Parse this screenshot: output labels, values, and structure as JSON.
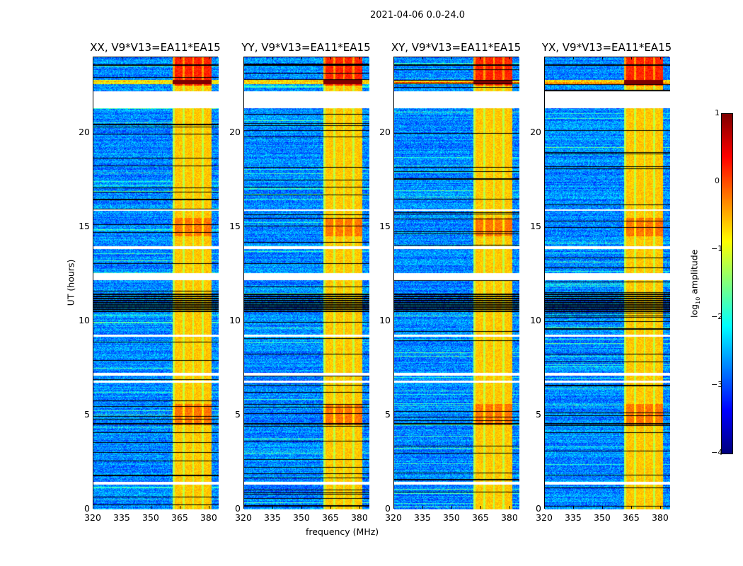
{
  "chart_data": {
    "type": "heatmap",
    "title": "2021-04-06 0.0-24.0",
    "xlabel": "frequency (MHz)",
    "ylabel": "UT (hours)",
    "xlim": [
      320,
      384.8
    ],
    "ylim": [
      0,
      24
    ],
    "xticks": [
      "320",
      "335",
      "350",
      "365",
      "380"
    ],
    "xtick_values": [
      320,
      335,
      350,
      365,
      380
    ],
    "yticks": [
      "0",
      "5",
      "10",
      "15",
      "20"
    ],
    "ytick_values": [
      0,
      5,
      10,
      15,
      20
    ],
    "panels": [
      {
        "title": "XX, V9*V13=EA11*EA15"
      },
      {
        "title": "YY, V9*V13=EA11*EA15"
      },
      {
        "title": "XY, V9*V13=EA11*EA15"
      },
      {
        "title": "YX, V9*V13=EA11*EA15"
      }
    ],
    "colorbar": {
      "label": "log10 amplitude",
      "label_main": "log",
      "label_sub": "10",
      "label_rest": " amplitude",
      "colormap": "jet",
      "range": [
        -4,
        1
      ],
      "ticks": [
        "1",
        "0",
        "−1",
        "−2",
        "−3",
        "−4"
      ],
      "tick_values": [
        1,
        0,
        -1,
        -2,
        -3,
        -4
      ]
    },
    "features": {
      "bright_band_mhz": [
        361,
        381
      ],
      "band_level": 0.0,
      "background_level": -2.7,
      "blank_hours": [
        [
          21.3,
          22.2
        ],
        [
          12.2,
          12.55
        ],
        [
          13.85,
          14.0
        ],
        [
          1.35,
          1.5
        ],
        [
          9.2,
          9.3
        ],
        [
          7.1,
          7.25
        ],
        [
          6.75,
          6.85
        ],
        [
          15.85,
          15.95
        ]
      ],
      "flagged_hours": [
        [
          21.3,
          21.5
        ],
        [
          10.5,
          11.5
        ],
        [
          23.55,
          23.65
        ],
        [
          4.5,
          4.6
        ]
      ]
    }
  }
}
